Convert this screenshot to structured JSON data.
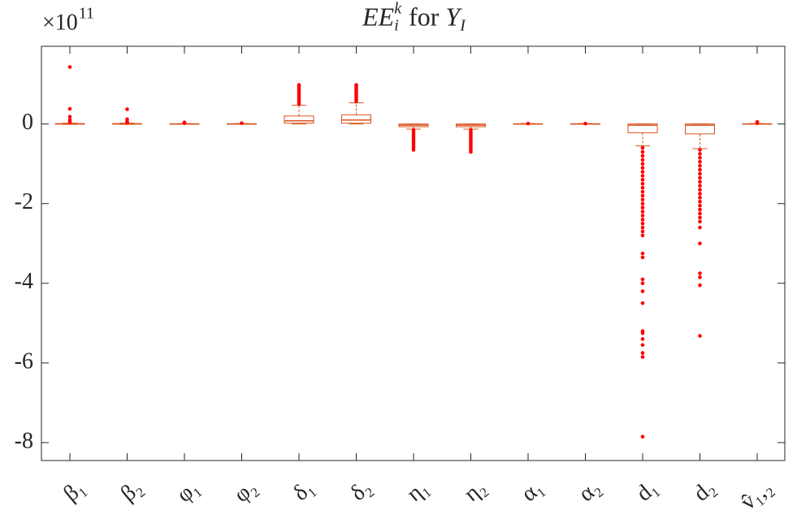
{
  "chart_data": {
    "type": "box",
    "title_parts": [
      {
        "text": "EE",
        "shift": "base",
        "italic": true
      },
      {
        "text": "i",
        "shift": "sub",
        "italic": true
      },
      {
        "text": "k",
        "shift": "supstack",
        "italic": true
      },
      {
        "text": " for ",
        "shift": "base",
        "italic": false
      },
      {
        "text": "Y",
        "shift": "base",
        "italic": true
      },
      {
        "text": "I",
        "shift": "sub",
        "italic": true
      }
    ],
    "multiplier": "×10",
    "multiplier_exponent": "11",
    "categories": [
      "β₁",
      "β₂",
      "φ₁",
      "φ₂",
      "δ₁",
      "δ₂",
      "η₁",
      "η₂",
      "α₁",
      "α₂",
      "d₁",
      "d₂",
      "v̂₁,₂"
    ],
    "boxes": [
      {
        "q1": 0,
        "median": 0,
        "q3": 0.01,
        "whisker_low": -0.01,
        "whisker_high": 0.02,
        "outliers": [
          1.43,
          0.38,
          0.18,
          0.1,
          0.05
        ]
      },
      {
        "q1": 0,
        "median": 0,
        "q3": 0.01,
        "whisker_low": -0.01,
        "whisker_high": 0.02,
        "outliers": [
          0.37,
          0.12,
          0.06,
          0.03
        ]
      },
      {
        "q1": 0,
        "median": 0,
        "q3": 0.005,
        "whisker_low": -0.005,
        "whisker_high": 0.01,
        "outliers": [
          0.04,
          0.02
        ]
      },
      {
        "q1": 0,
        "median": 0,
        "q3": 0.005,
        "whisker_low": -0.005,
        "whisker_high": 0.01,
        "outliers": [
          0.02
        ]
      },
      {
        "q1": 0.02,
        "median": 0.08,
        "q3": 0.2,
        "whisker_low": 0,
        "whisker_high": 0.47,
        "outliers": [
          0.5,
          0.55,
          0.6,
          0.65,
          0.7,
          0.75,
          0.8,
          0.85,
          0.9,
          0.95,
          0.98
        ]
      },
      {
        "q1": 0.02,
        "median": 0.1,
        "q3": 0.23,
        "whisker_low": 0,
        "whisker_high": 0.53,
        "outliers": [
          0.57,
          0.62,
          0.67,
          0.72,
          0.77,
          0.82,
          0.87,
          0.92,
          0.96,
          0.98
        ]
      },
      {
        "q1": -0.07,
        "median": -0.03,
        "q3": 0,
        "whisker_low": -0.13,
        "whisker_high": 0,
        "outliers": [
          -0.15,
          -0.2,
          -0.25,
          -0.3,
          -0.35,
          -0.4,
          -0.45,
          -0.5,
          -0.55,
          -0.6,
          -0.65
        ]
      },
      {
        "q1": -0.07,
        "median": -0.03,
        "q3": 0,
        "whisker_low": -0.13,
        "whisker_high": 0,
        "outliers": [
          -0.15,
          -0.2,
          -0.25,
          -0.3,
          -0.35,
          -0.4,
          -0.45,
          -0.5,
          -0.55,
          -0.6,
          -0.65,
          -0.7
        ]
      },
      {
        "q1": 0,
        "median": 0,
        "q3": 0.005,
        "whisker_low": -0.005,
        "whisker_high": 0.01,
        "outliers": [
          0.01
        ]
      },
      {
        "q1": 0,
        "median": 0,
        "q3": 0.005,
        "whisker_low": -0.005,
        "whisker_high": 0.01,
        "outliers": [
          0.01
        ]
      },
      {
        "q1": -0.22,
        "median": -0.03,
        "q3": 0,
        "whisker_low": -0.55,
        "whisker_high": 0,
        "outliers": [
          -0.6,
          -0.7,
          -0.8,
          -0.9,
          -1.0,
          -1.1,
          -1.2,
          -1.3,
          -1.4,
          -1.5,
          -1.6,
          -1.7,
          -1.8,
          -1.9,
          -2.0,
          -2.1,
          -2.2,
          -2.3,
          -2.4,
          -2.5,
          -2.6,
          -2.7,
          -2.8,
          -3.25,
          -3.35,
          -3.9,
          -4.0,
          -4.2,
          -4.5,
          -5.2,
          -5.25,
          -5.4,
          -5.55,
          -5.75,
          -5.85,
          -7.85
        ]
      },
      {
        "q1": -0.25,
        "median": -0.03,
        "q3": 0,
        "whisker_low": -0.62,
        "whisker_high": 0,
        "outliers": [
          -0.65,
          -0.75,
          -0.85,
          -0.95,
          -1.05,
          -1.15,
          -1.25,
          -1.35,
          -1.45,
          -1.55,
          -1.65,
          -1.75,
          -1.85,
          -1.95,
          -2.05,
          -2.15,
          -2.25,
          -2.35,
          -2.45,
          -2.6,
          -3.0,
          -3.75,
          -3.85,
          -4.05,
          -5.32
        ]
      },
      {
        "q1": 0,
        "median": 0,
        "q3": 0.005,
        "whisker_low": -0.005,
        "whisker_high": 0.01,
        "outliers": [
          0.05,
          0.02
        ]
      }
    ],
    "box_color": "#d9531e",
    "outlier_color": "#ff0000",
    "ylim": [
      -8.45,
      1.95
    ],
    "yticks": [
      -8,
      -6,
      -4,
      -2,
      0
    ],
    "grid": false
  }
}
